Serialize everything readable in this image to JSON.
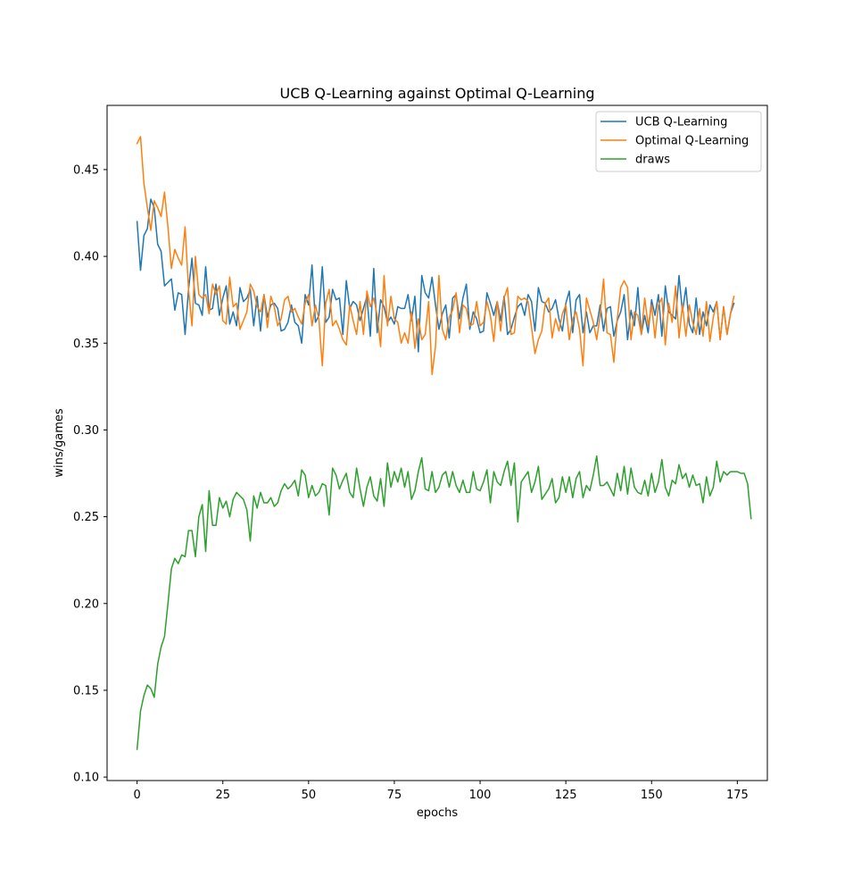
{
  "chart_data": {
    "type": "line",
    "title": "UCB Q-Learning against Optimal Q-Learning",
    "xlabel": "epochs",
    "ylabel": "wins/games",
    "xlim": [
      -8.75,
      183.75
    ],
    "ylim": [
      0.098,
      0.487
    ],
    "xticks": [
      0,
      25,
      50,
      75,
      100,
      125,
      150,
      175
    ],
    "xtick_labels": [
      "0",
      "25",
      "50",
      "75",
      "100",
      "125",
      "150",
      "175"
    ],
    "yticks": [
      0.1,
      0.15,
      0.2,
      0.25,
      0.3,
      0.35,
      0.4,
      0.45
    ],
    "ytick_labels": [
      "0.10",
      "0.15",
      "0.20",
      "0.25",
      "0.30",
      "0.35",
      "0.40",
      "0.45"
    ],
    "grid": false,
    "legend_position": "upper right",
    "series": [
      {
        "name": "UCB Q-Learning",
        "color": "#1f77b4",
        "values": [
          0.42,
          0.392,
          0.412,
          0.416,
          0.433,
          0.428,
          0.407,
          0.403,
          0.383,
          0.385,
          0.387,
          0.369,
          0.379,
          0.378,
          0.355,
          0.381,
          0.399,
          0.373,
          0.372,
          0.366,
          0.394,
          0.369,
          0.37,
          0.384,
          0.366,
          0.376,
          0.383,
          0.361,
          0.368,
          0.36,
          0.382,
          0.374,
          0.376,
          0.381,
          0.36,
          0.377,
          0.357,
          0.378,
          0.365,
          0.372,
          0.373,
          0.37,
          0.357,
          0.358,
          0.362,
          0.372,
          0.362,
          0.36,
          0.35,
          0.378,
          0.372,
          0.395,
          0.362,
          0.366,
          0.394,
          0.362,
          0.365,
          0.381,
          0.375,
          0.376,
          0.355,
          0.386,
          0.37,
          0.374,
          0.372,
          0.363,
          0.37,
          0.377,
          0.354,
          0.393,
          0.356,
          0.375,
          0.371,
          0.362,
          0.365,
          0.361,
          0.371,
          0.37,
          0.37,
          0.378,
          0.363,
          0.377,
          0.345,
          0.389,
          0.379,
          0.376,
          0.388,
          0.372,
          0.358,
          0.367,
          0.372,
          0.353,
          0.376,
          0.378,
          0.364,
          0.376,
          0.384,
          0.358,
          0.368,
          0.364,
          0.356,
          0.357,
          0.379,
          0.373,
          0.366,
          0.374,
          0.363,
          0.377,
          0.355,
          0.358,
          0.365,
          0.371,
          0.373,
          0.366,
          0.378,
          0.374,
          0.357,
          0.382,
          0.374,
          0.373,
          0.368,
          0.37,
          0.375,
          0.364,
          0.357,
          0.373,
          0.38,
          0.356,
          0.375,
          0.378,
          0.356,
          0.368,
          0.356,
          0.36,
          0.36,
          0.372,
          0.357,
          0.37,
          0.371,
          0.354,
          0.363,
          0.368,
          0.378,
          0.352,
          0.369,
          0.36,
          0.382,
          0.355,
          0.366,
          0.356,
          0.375,
          0.366,
          0.378,
          0.354,
          0.383,
          0.368,
          0.366,
          0.364,
          0.389,
          0.368,
          0.382,
          0.361,
          0.356,
          0.376,
          0.355,
          0.368,
          0.36,
          0.372,
          0.368,
          0.374,
          0.352,
          0.371,
          0.355,
          0.367,
          0.373
        ]
      },
      {
        "name": "Optimal Q-Learning",
        "color": "#ff7f0e",
        "values": [
          0.465,
          0.469,
          0.442,
          0.428,
          0.415,
          0.432,
          0.428,
          0.423,
          0.437,
          0.417,
          0.393,
          0.404,
          0.399,
          0.395,
          0.417,
          0.381,
          0.36,
          0.4,
          0.378,
          0.376,
          0.378,
          0.367,
          0.384,
          0.378,
          0.383,
          0.363,
          0.361,
          0.388,
          0.371,
          0.373,
          0.358,
          0.363,
          0.368,
          0.384,
          0.38,
          0.371,
          0.368,
          0.378,
          0.359,
          0.377,
          0.371,
          0.36,
          0.364,
          0.375,
          0.377,
          0.368,
          0.37,
          0.365,
          0.361,
          0.373,
          0.378,
          0.36,
          0.372,
          0.364,
          0.337,
          0.373,
          0.381,
          0.36,
          0.363,
          0.358,
          0.352,
          0.349,
          0.372,
          0.363,
          0.355,
          0.374,
          0.355,
          0.38,
          0.371,
          0.376,
          0.366,
          0.348,
          0.389,
          0.36,
          0.377,
          0.364,
          0.362,
          0.35,
          0.356,
          0.35,
          0.368,
          0.347,
          0.364,
          0.352,
          0.355,
          0.374,
          0.332,
          0.348,
          0.389,
          0.358,
          0.352,
          0.365,
          0.369,
          0.379,
          0.356,
          0.372,
          0.37,
          0.36,
          0.361,
          0.374,
          0.36,
          0.362,
          0.374,
          0.366,
          0.351,
          0.374,
          0.357,
          0.376,
          0.382,
          0.355,
          0.356,
          0.377,
          0.375,
          0.376,
          0.374,
          0.359,
          0.344,
          0.352,
          0.357,
          0.373,
          0.376,
          0.353,
          0.364,
          0.357,
          0.367,
          0.372,
          0.352,
          0.364,
          0.368,
          0.358,
          0.337,
          0.376,
          0.369,
          0.362,
          0.352,
          0.366,
          0.387,
          0.356,
          0.355,
          0.339,
          0.364,
          0.382,
          0.386,
          0.382,
          0.352,
          0.368,
          0.366,
          0.355,
          0.376,
          0.36,
          0.372,
          0.353,
          0.372,
          0.376,
          0.349,
          0.373,
          0.362,
          0.383,
          0.353,
          0.372,
          0.354,
          0.372,
          0.362,
          0.355,
          0.37,
          0.354,
          0.374,
          0.351,
          0.365,
          0.374,
          0.352,
          0.371,
          0.355,
          0.367,
          0.377
        ]
      },
      {
        "name": "draws",
        "color": "#2ca02c",
        "values": [
          0.116,
          0.138,
          0.147,
          0.153,
          0.151,
          0.146,
          0.165,
          0.175,
          0.181,
          0.2,
          0.22,
          0.226,
          0.223,
          0.228,
          0.227,
          0.242,
          0.242,
          0.227,
          0.25,
          0.257,
          0.23,
          0.265,
          0.245,
          0.245,
          0.261,
          0.255,
          0.259,
          0.25,
          0.26,
          0.264,
          0.262,
          0.26,
          0.254,
          0.236,
          0.262,
          0.255,
          0.264,
          0.258,
          0.258,
          0.261,
          0.256,
          0.258,
          0.265,
          0.269,
          0.266,
          0.268,
          0.271,
          0.262,
          0.277,
          0.274,
          0.261,
          0.268,
          0.262,
          0.264,
          0.269,
          0.268,
          0.251,
          0.278,
          0.274,
          0.266,
          0.271,
          0.275,
          0.264,
          0.261,
          0.278,
          0.266,
          0.256,
          0.267,
          0.273,
          0.262,
          0.259,
          0.272,
          0.256,
          0.281,
          0.267,
          0.276,
          0.27,
          0.278,
          0.267,
          0.276,
          0.26,
          0.265,
          0.276,
          0.284,
          0.266,
          0.265,
          0.276,
          0.264,
          0.267,
          0.274,
          0.276,
          0.267,
          0.276,
          0.268,
          0.264,
          0.271,
          0.264,
          0.264,
          0.276,
          0.266,
          0.265,
          0.27,
          0.277,
          0.258,
          0.276,
          0.27,
          0.268,
          0.276,
          0.282,
          0.268,
          0.281,
          0.247,
          0.27,
          0.273,
          0.276,
          0.264,
          0.27,
          0.279,
          0.26,
          0.263,
          0.266,
          0.272,
          0.258,
          0.261,
          0.273,
          0.264,
          0.273,
          0.261,
          0.272,
          0.276,
          0.261,
          0.268,
          0.265,
          0.274,
          0.285,
          0.268,
          0.268,
          0.27,
          0.266,
          0.262,
          0.275,
          0.265,
          0.279,
          0.263,
          0.278,
          0.267,
          0.264,
          0.263,
          0.271,
          0.262,
          0.275,
          0.264,
          0.27,
          0.283,
          0.267,
          0.262,
          0.271,
          0.269,
          0.28,
          0.272,
          0.275,
          0.267,
          0.274,
          0.268,
          0.269,
          0.258,
          0.273,
          0.262,
          0.267,
          0.282,
          0.27,
          0.276,
          0.274,
          0.276,
          0.276,
          0.276,
          0.275,
          0.275,
          0.269,
          0.249
        ]
      }
    ]
  }
}
